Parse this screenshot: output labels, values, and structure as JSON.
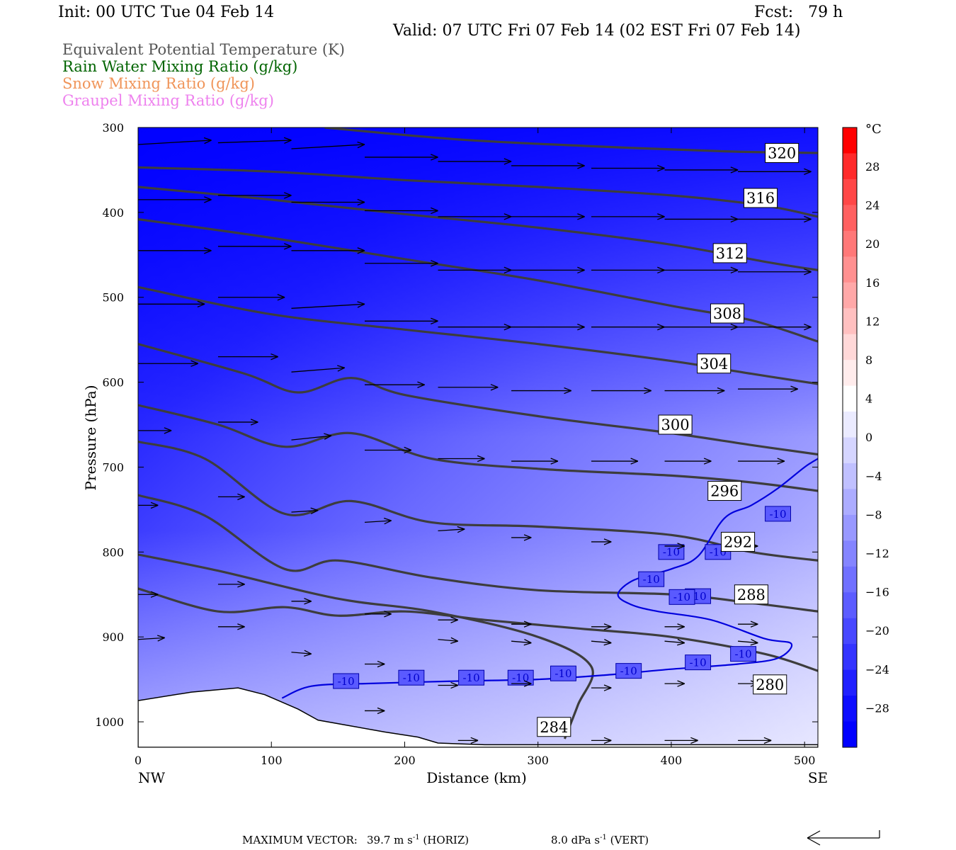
{
  "header": {
    "init": "Init: 00 UTC Tue 04 Feb 14",
    "fcst": "Fcst:   79 h",
    "valid": "Valid: 07 UTC Fri 07 Feb 14 (02 EST Fri 07 Feb 14)"
  },
  "legend": {
    "items": [
      {
        "label": "Equivalent Potential Temperature (K)",
        "color": "#555555"
      },
      {
        "label": "Rain Water Mixing Ratio (g/kg)",
        "color": "#006400"
      },
      {
        "label": "Snow Mixing Ratio (g/kg)",
        "color": "#f0955a"
      },
      {
        "label": "Graupel Mixing Ratio (g/kg)",
        "color": "#ee82ee"
      }
    ]
  },
  "footer": {
    "max_vector_label": "MAXIMUM VECTOR:",
    "horiz_value": "39.7 m s",
    "horiz_unit": "(HORIZ)",
    "vert_value": "8.0 dPa s",
    "vert_unit": "(VERT)",
    "exponent": "-1"
  },
  "chart_data": {
    "type": "contour_cross_section",
    "xlabel": "Distance (km)",
    "ylabel": "Pressure (hPa)",
    "x_ticks": [
      0,
      100,
      200,
      300,
      400,
      500
    ],
    "x_end_labels": {
      "left": "NW",
      "right": "SE"
    },
    "y_ticks": [
      300,
      400,
      500,
      600,
      700,
      800,
      900,
      1000
    ],
    "xlim": [
      0,
      510
    ],
    "ylim": [
      300,
      1030
    ],
    "colorbar": {
      "unit": "°C",
      "labels": [
        "28",
        "24",
        "20",
        "16",
        "12",
        "8",
        "4",
        "0",
        "-4",
        "-8",
        "-12",
        "-16",
        "-20",
        "-24",
        "-28"
      ],
      "colors": [
        "#ff0000",
        "#ff2a2a",
        "#ff4747",
        "#ff6060",
        "#ff7878",
        "#ff9090",
        "#ffa8a8",
        "#ffc0c0",
        "#ffd8d8",
        "#ffecec",
        "#ffffff",
        "#ebebff",
        "#d5d5ff",
        "#c0c0ff",
        "#acacff",
        "#9898ff",
        "#8484ff",
        "#7070ff",
        "#5c5cff",
        "#4848ff",
        "#3434ff",
        "#2020ff",
        "#0d0dff",
        "#0000ff"
      ]
    },
    "theta_e_contours": [
      {
        "value": "320",
        "points": [
          [
            140,
            300
          ],
          [
            240,
            314
          ],
          [
            340,
            322
          ],
          [
            440,
            328
          ],
          [
            510,
            330
          ]
        ],
        "label_at": [
          483,
          330
        ]
      },
      {
        "value": "316",
        "points": [
          [
            0,
            347
          ],
          [
            100,
            352
          ],
          [
            200,
            362
          ],
          [
            300,
            370
          ],
          [
            400,
            380
          ],
          [
            470,
            392
          ],
          [
            510,
            405
          ]
        ],
        "label_at": [
          467,
          383
        ]
      },
      {
        "value": "312",
        "points": [
          [
            0,
            370
          ],
          [
            100,
            385
          ],
          [
            200,
            402
          ],
          [
            300,
            418
          ],
          [
            400,
            438
          ],
          [
            470,
            458
          ],
          [
            510,
            468
          ]
        ],
        "label_at": [
          444,
          448
        ]
      },
      {
        "value": "308",
        "points": [
          [
            0,
            408
          ],
          [
            100,
            430
          ],
          [
            200,
            455
          ],
          [
            300,
            480
          ],
          [
            400,
            510
          ],
          [
            460,
            527
          ],
          [
            510,
            552
          ]
        ],
        "label_at": [
          442,
          519
        ]
      },
      {
        "value": "304",
        "points": [
          [
            0,
            488
          ],
          [
            100,
            520
          ],
          [
            200,
            538
          ],
          [
            300,
            555
          ],
          [
            400,
            575
          ],
          [
            460,
            590
          ],
          [
            510,
            602
          ]
        ],
        "label_at": [
          432,
          578
        ]
      },
      {
        "value": "300",
        "points": [
          [
            0,
            555
          ],
          [
            80,
            590
          ],
          [
            120,
            612
          ],
          [
            160,
            595
          ],
          [
            200,
            615
          ],
          [
            300,
            640
          ],
          [
            400,
            660
          ],
          [
            460,
            674
          ],
          [
            510,
            685
          ]
        ],
        "label_at": [
          403,
          650
        ]
      },
      {
        "value": "296",
        "points": [
          [
            0,
            627
          ],
          [
            60,
            650
          ],
          [
            110,
            676
          ],
          [
            160,
            660
          ],
          [
            220,
            690
          ],
          [
            300,
            702
          ],
          [
            400,
            710
          ],
          [
            460,
            718
          ],
          [
            510,
            728
          ]
        ],
        "label_at": [
          440,
          728
        ]
      },
      {
        "value": "292",
        "points": [
          [
            0,
            670
          ],
          [
            50,
            690
          ],
          [
            110,
            755
          ],
          [
            160,
            740
          ],
          [
            220,
            765
          ],
          [
            300,
            770
          ],
          [
            400,
            780
          ],
          [
            460,
            800
          ],
          [
            510,
            810
          ]
        ],
        "label_at": [
          450,
          788
        ]
      },
      {
        "value": "288",
        "points": [
          [
            0,
            733
          ],
          [
            50,
            757
          ],
          [
            110,
            820
          ],
          [
            150,
            810
          ],
          [
            220,
            830
          ],
          [
            300,
            845
          ],
          [
            400,
            850
          ],
          [
            460,
            860
          ],
          [
            510,
            870
          ]
        ],
        "label_at": [
          460,
          850
        ]
      },
      {
        "value": "284",
        "points": [
          [
            0,
            803
          ],
          [
            60,
            822
          ],
          [
            150,
            855
          ],
          [
            220,
            870
          ],
          [
            300,
            900
          ],
          [
            340,
            935
          ],
          [
            330,
            980
          ],
          [
            320,
            1020
          ]
        ],
        "label_at": [
          312,
          1006
        ]
      },
      {
        "value": "280",
        "points": [
          [
            0,
            843
          ],
          [
            60,
            870
          ],
          [
            110,
            865
          ],
          [
            150,
            875
          ],
          [
            200,
            870
          ],
          [
            260,
            880
          ],
          [
            330,
            890
          ],
          [
            400,
            900
          ],
          [
            470,
            920
          ],
          [
            510,
            940
          ]
        ],
        "label_at": [
          474,
          956
        ]
      }
    ],
    "isotherm_neg10": {
      "value": "-10",
      "points": [
        [
          108,
          972
        ],
        [
          130,
          958
        ],
        [
          170,
          955
        ],
        [
          240,
          952
        ],
        [
          300,
          950
        ],
        [
          350,
          945
        ],
        [
          400,
          938
        ],
        [
          450,
          932
        ],
        [
          480,
          925
        ],
        [
          490,
          908
        ],
        [
          470,
          902
        ],
        [
          430,
          880
        ],
        [
          390,
          870
        ],
        [
          370,
          862
        ],
        [
          360,
          850
        ],
        [
          372,
          833
        ],
        [
          400,
          820
        ],
        [
          420,
          805
        ],
        [
          440,
          760
        ],
        [
          460,
          745
        ],
        [
          480,
          725
        ],
        [
          500,
          700
        ],
        [
          510,
          690
        ]
      ],
      "labels": [
        [
          156,
          952
        ],
        [
          205,
          948
        ],
        [
          250,
          948
        ],
        [
          287,
          948
        ],
        [
          319,
          943
        ],
        [
          368,
          940
        ],
        [
          420,
          930
        ],
        [
          454,
          920
        ],
        [
          420,
          852
        ],
        [
          408,
          853
        ],
        [
          385,
          832
        ],
        [
          400,
          800
        ],
        [
          435,
          800
        ],
        [
          480,
          755
        ]
      ]
    },
    "arrows": [
      {
        "x": 0,
        "p": 320,
        "dx": 55,
        "dp": -5
      },
      {
        "x": 60,
        "p": 318,
        "dx": 55,
        "dp": -3
      },
      {
        "x": 115,
        "p": 325,
        "dx": 55,
        "dp": -5
      },
      {
        "x": 170,
        "p": 335,
        "dx": 55,
        "dp": 0
      },
      {
        "x": 225,
        "p": 340,
        "dx": 55,
        "dp": 0
      },
      {
        "x": 280,
        "p": 345,
        "dx": 55,
        "dp": 0
      },
      {
        "x": 340,
        "p": 348,
        "dx": 55,
        "dp": 0
      },
      {
        "x": 395,
        "p": 350,
        "dx": 55,
        "dp": 0
      },
      {
        "x": 450,
        "p": 352,
        "dx": 55,
        "dp": 0
      },
      {
        "x": 0,
        "p": 385,
        "dx": 55,
        "dp": 0
      },
      {
        "x": 60,
        "p": 380,
        "dx": 55,
        "dp": 0
      },
      {
        "x": 115,
        "p": 388,
        "dx": 55,
        "dp": 0
      },
      {
        "x": 170,
        "p": 398,
        "dx": 55,
        "dp": 0
      },
      {
        "x": 225,
        "p": 405,
        "dx": 55,
        "dp": 0
      },
      {
        "x": 280,
        "p": 405,
        "dx": 55,
        "dp": 0
      },
      {
        "x": 340,
        "p": 405,
        "dx": 55,
        "dp": 0
      },
      {
        "x": 395,
        "p": 408,
        "dx": 55,
        "dp": 0
      },
      {
        "x": 450,
        "p": 408,
        "dx": 55,
        "dp": 0
      },
      {
        "x": 0,
        "p": 445,
        "dx": 55,
        "dp": 0
      },
      {
        "x": 60,
        "p": 440,
        "dx": 55,
        "dp": 0
      },
      {
        "x": 115,
        "p": 445,
        "dx": 55,
        "dp": 0
      },
      {
        "x": 170,
        "p": 460,
        "dx": 55,
        "dp": 0
      },
      {
        "x": 225,
        "p": 468,
        "dx": 55,
        "dp": 0
      },
      {
        "x": 280,
        "p": 468,
        "dx": 55,
        "dp": 0
      },
      {
        "x": 340,
        "p": 468,
        "dx": 55,
        "dp": 0
      },
      {
        "x": 395,
        "p": 468,
        "dx": 55,
        "dp": 0
      },
      {
        "x": 450,
        "p": 470,
        "dx": 55,
        "dp": 0
      },
      {
        "x": 0,
        "p": 508,
        "dx": 50,
        "dp": 0
      },
      {
        "x": 60,
        "p": 500,
        "dx": 50,
        "dp": 0
      },
      {
        "x": 115,
        "p": 513,
        "dx": 55,
        "dp": -5
      },
      {
        "x": 170,
        "p": 528,
        "dx": 55,
        "dp": 0
      },
      {
        "x": 225,
        "p": 535,
        "dx": 55,
        "dp": 0
      },
      {
        "x": 280,
        "p": 535,
        "dx": 55,
        "dp": 0
      },
      {
        "x": 340,
        "p": 535,
        "dx": 55,
        "dp": 0
      },
      {
        "x": 395,
        "p": 535,
        "dx": 55,
        "dp": 0
      },
      {
        "x": 450,
        "p": 535,
        "dx": 55,
        "dp": 0
      },
      {
        "x": 0,
        "p": 578,
        "dx": 45,
        "dp": 0
      },
      {
        "x": 60,
        "p": 570,
        "dx": 45,
        "dp": 0
      },
      {
        "x": 115,
        "p": 588,
        "dx": 40,
        "dp": -5
      },
      {
        "x": 170,
        "p": 603,
        "dx": 45,
        "dp": 0
      },
      {
        "x": 225,
        "p": 606,
        "dx": 45,
        "dp": 0
      },
      {
        "x": 280,
        "p": 610,
        "dx": 45,
        "dp": 0
      },
      {
        "x": 340,
        "p": 610,
        "dx": 45,
        "dp": 0
      },
      {
        "x": 395,
        "p": 610,
        "dx": 45,
        "dp": 0
      },
      {
        "x": 450,
        "p": 608,
        "dx": 45,
        "dp": 0
      },
      {
        "x": 0,
        "p": 657,
        "dx": 25,
        "dp": 0
      },
      {
        "x": 60,
        "p": 647,
        "dx": 30,
        "dp": 0
      },
      {
        "x": 115,
        "p": 668,
        "dx": 30,
        "dp": -5
      },
      {
        "x": 170,
        "p": 680,
        "dx": 35,
        "dp": 0
      },
      {
        "x": 225,
        "p": 690,
        "dx": 35,
        "dp": 0
      },
      {
        "x": 280,
        "p": 693,
        "dx": 35,
        "dp": 0
      },
      {
        "x": 340,
        "p": 693,
        "dx": 35,
        "dp": 0
      },
      {
        "x": 395,
        "p": 693,
        "dx": 35,
        "dp": 0
      },
      {
        "x": 450,
        "p": 693,
        "dx": 35,
        "dp": 0
      },
      {
        "x": 0,
        "p": 745,
        "dx": 15,
        "dp": 0
      },
      {
        "x": 60,
        "p": 735,
        "dx": 20,
        "dp": 0
      },
      {
        "x": 115,
        "p": 753,
        "dx": 20,
        "dp": -2
      },
      {
        "x": 170,
        "p": 765,
        "dx": 20,
        "dp": -2
      },
      {
        "x": 225,
        "p": 775,
        "dx": 20,
        "dp": -2
      },
      {
        "x": 280,
        "p": 783,
        "dx": 15,
        "dp": 0
      },
      {
        "x": 340,
        "p": 788,
        "dx": 15,
        "dp": 0
      },
      {
        "x": 395,
        "p": 793,
        "dx": 15,
        "dp": 0
      },
      {
        "x": 450,
        "p": 793,
        "dx": 15,
        "dp": 0
      },
      {
        "x": 0,
        "p": 850,
        "dx": 15,
        "dp": 0
      },
      {
        "x": 60,
        "p": 838,
        "dx": 20,
        "dp": 0
      },
      {
        "x": 115,
        "p": 858,
        "dx": 15,
        "dp": 0
      },
      {
        "x": 170,
        "p": 873,
        "dx": 20,
        "dp": 0
      },
      {
        "x": 225,
        "p": 880,
        "dx": 15,
        "dp": 0
      },
      {
        "x": 280,
        "p": 885,
        "dx": 15,
        "dp": 0
      },
      {
        "x": 340,
        "p": 888,
        "dx": 15,
        "dp": 0
      },
      {
        "x": 395,
        "p": 888,
        "dx": 15,
        "dp": 0
      },
      {
        "x": 450,
        "p": 885,
        "dx": 15,
        "dp": 0
      },
      {
        "x": 0,
        "p": 903,
        "dx": 20,
        "dp": -2
      },
      {
        "x": 60,
        "p": 888,
        "dx": 20,
        "dp": 0
      },
      {
        "x": 115,
        "p": 918,
        "dx": 15,
        "dp": 2
      },
      {
        "x": 170,
        "p": 932,
        "dx": 15,
        "dp": 0
      },
      {
        "x": 225,
        "p": 903,
        "dx": 15,
        "dp": 2
      },
      {
        "x": 280,
        "p": 905,
        "dx": 15,
        "dp": 2
      },
      {
        "x": 340,
        "p": 905,
        "dx": 15,
        "dp": 2
      },
      {
        "x": 395,
        "p": 905,
        "dx": 15,
        "dp": 2
      },
      {
        "x": 450,
        "p": 905,
        "dx": 15,
        "dp": 2
      },
      {
        "x": 170,
        "p": 987,
        "dx": 15,
        "dp": 0
      },
      {
        "x": 225,
        "p": 957,
        "dx": 15,
        "dp": 0
      },
      {
        "x": 280,
        "p": 955,
        "dx": 15,
        "dp": 0
      },
      {
        "x": 340,
        "p": 960,
        "dx": 15,
        "dp": 0
      },
      {
        "x": 395,
        "p": 955,
        "dx": 15,
        "dp": 0
      },
      {
        "x": 450,
        "p": 955,
        "dx": 15,
        "dp": 0
      },
      {
        "x": 240,
        "p": 1022,
        "dx": 15,
        "dp": 0
      },
      {
        "x": 340,
        "p": 1022,
        "dx": 15,
        "dp": 0
      },
      {
        "x": 395,
        "p": 1022,
        "dx": 25,
        "dp": 0
      },
      {
        "x": 450,
        "p": 1022,
        "dx": 25,
        "dp": 0
      }
    ],
    "terrain": [
      [
        0,
        975
      ],
      [
        40,
        965
      ],
      [
        75,
        960
      ],
      [
        95,
        968
      ],
      [
        120,
        985
      ],
      [
        135,
        998
      ],
      [
        160,
        1005
      ],
      [
        185,
        1012
      ],
      [
        210,
        1018
      ],
      [
        225,
        1025
      ],
      [
        260,
        1027
      ],
      [
        320,
        1027
      ],
      [
        400,
        1027
      ],
      [
        480,
        1027
      ],
      [
        510,
        1027
      ]
    ]
  }
}
